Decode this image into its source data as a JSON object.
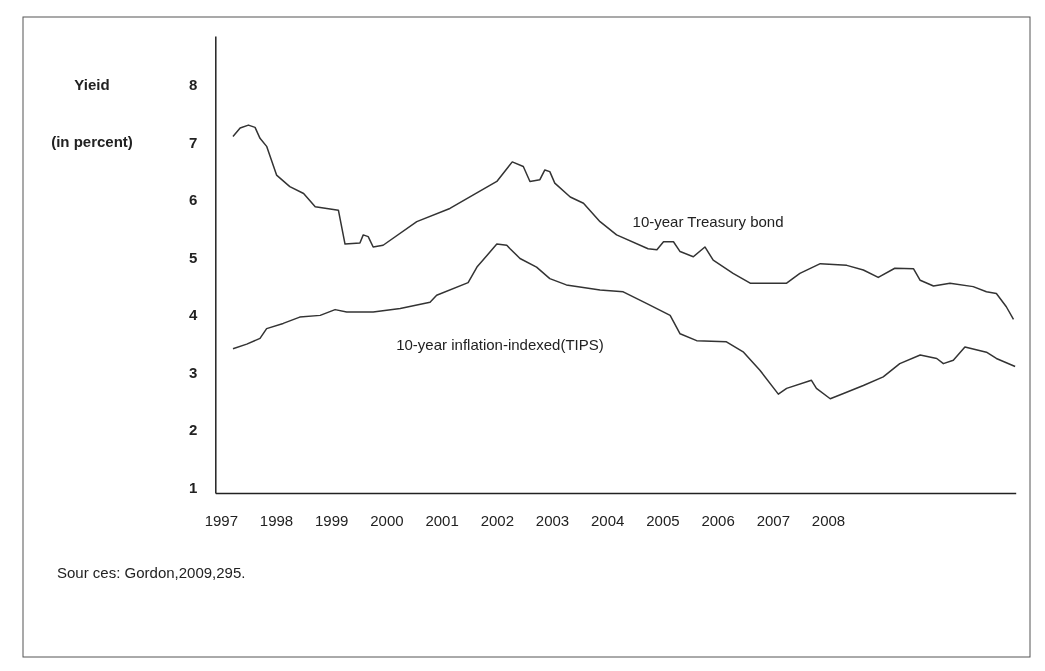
{
  "chart_data": {
    "type": "line",
    "ylabel": "Yieid\n(in percent)",
    "xlim": [
      1996.9,
      2011.4
    ],
    "xticks": [
      1997,
      1998,
      1999,
      2000,
      2001,
      2002,
      2003,
      2004,
      2005,
      2006,
      2007,
      2008
    ],
    "ylim": [
      0.9,
      8.85
    ],
    "yticks": [
      1,
      2,
      3,
      4,
      5,
      6,
      7,
      8
    ],
    "grid": false,
    "legend": false,
    "marker": "none",
    "line_style": "solid",
    "annotations": [
      "Sour ces:  Gordon,2009,295."
    ],
    "series": [
      {
        "name": "10-year Treasury bond",
        "color": "#333333",
        "x": [
          1997.22,
          1997.35,
          1997.5,
          1997.62,
          1997.71,
          1997.83,
          1998.01,
          1998.25,
          1998.5,
          1998.71,
          1999.13,
          1999.25,
          1999.52,
          1999.58,
          1999.67,
          1999.76,
          1999.94,
          2000.55,
          2001.15,
          2002.0,
          2002.28,
          2002.48,
          2002.6,
          2002.78,
          2002.87,
          2002.96,
          2003.05,
          2003.33,
          2003.57,
          2003.87,
          2004.17,
          2004.74,
          2004.9,
          2005.02,
          2005.2,
          2005.32,
          2005.56,
          2005.77,
          2005.92,
          2006.28,
          2006.59,
          2007.25,
          2007.49,
          2007.86,
          2008.34,
          2008.64,
          2008.91,
          2009.21,
          2009.55,
          2009.67,
          2009.91,
          2010.21,
          2010.63,
          2010.87,
          2011.05,
          2011.23,
          2011.36
        ],
        "values": [
          7.1,
          7.25,
          7.3,
          7.26,
          7.07,
          6.93,
          6.43,
          6.23,
          6.11,
          5.88,
          5.82,
          5.23,
          5.25,
          5.39,
          5.36,
          5.18,
          5.21,
          5.62,
          5.85,
          6.32,
          6.66,
          6.58,
          6.32,
          6.35,
          6.52,
          6.49,
          6.29,
          6.05,
          5.94,
          5.62,
          5.39,
          5.15,
          5.13,
          5.27,
          5.27,
          5.1,
          5.01,
          5.18,
          4.95,
          4.72,
          4.55,
          4.55,
          4.72,
          4.89,
          4.86,
          4.78,
          4.65,
          4.81,
          4.8,
          4.6,
          4.5,
          4.55,
          4.49,
          4.4,
          4.37,
          4.14,
          3.92
        ]
      },
      {
        "name": "10-year inflation-indexed(TIPS)",
        "color": "#333333",
        "x": [
          1997.22,
          1997.47,
          1997.71,
          1997.83,
          1998.13,
          1998.43,
          1998.8,
          1999.07,
          1999.28,
          1999.76,
          2000.25,
          2000.79,
          2000.91,
          2001.48,
          2001.64,
          2002.0,
          2002.18,
          2002.24,
          2002.42,
          2002.72,
          2002.96,
          2003.26,
          2003.87,
          2004.29,
          2004.71,
          2005.14,
          2005.32,
          2005.62,
          2006.16,
          2006.47,
          2006.77,
          2007.1,
          2007.25,
          2007.7,
          2007.79,
          2008.04,
          2008.28,
          2008.64,
          2009.0,
          2009.3,
          2009.67,
          2009.97,
          2010.09,
          2010.27,
          2010.48,
          2010.87,
          2011.05,
          2011.39
        ],
        "values": [
          3.41,
          3.49,
          3.59,
          3.76,
          3.85,
          3.96,
          3.99,
          4.09,
          4.05,
          4.05,
          4.11,
          4.22,
          4.34,
          4.56,
          4.83,
          5.23,
          5.21,
          5.15,
          4.98,
          4.83,
          4.63,
          4.52,
          4.43,
          4.4,
          4.2,
          3.99,
          3.67,
          3.55,
          3.53,
          3.35,
          3.03,
          2.62,
          2.72,
          2.86,
          2.72,
          2.54,
          2.63,
          2.77,
          2.92,
          3.15,
          3.3,
          3.24,
          3.15,
          3.21,
          3.44,
          3.35,
          3.24,
          3.1
        ]
      }
    ]
  }
}
